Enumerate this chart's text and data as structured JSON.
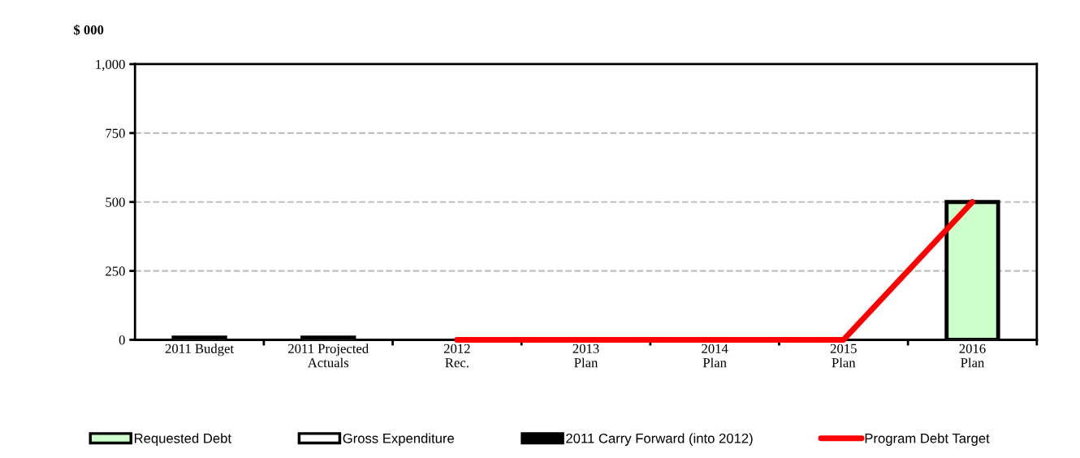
{
  "chart_data": {
    "type": "bar",
    "ylabel": "$ 000",
    "categories": [
      "2011 Budget",
      "2011 Projected\nActuals",
      "2012\nRec.",
      "2013\nPlan",
      "2014\nPlan",
      "2015\nPlan",
      "2016\nPlan"
    ],
    "series": [
      {
        "name": "Requested Debt",
        "color": "#ccffcc",
        "values": [
          8,
          null,
          null,
          null,
          null,
          null,
          500
        ]
      },
      {
        "name": "Gross Expenditure",
        "color": "#ffffff",
        "values": [
          null,
          8,
          null,
          null,
          null,
          null,
          null
        ]
      },
      {
        "name": "2011 Carry Forward (into 2012)",
        "color": "#000000",
        "values": [
          null,
          null,
          null,
          null,
          null,
          null,
          null
        ]
      },
      {
        "name": "Program Debt Target",
        "type": "line",
        "color": "#ff0000",
        "values": [
          null,
          null,
          0,
          0,
          0,
          0,
          500
        ]
      }
    ],
    "ylim": [
      0,
      1000
    ],
    "yticks": [
      0,
      {
        "value": 250,
        "label": "250"
      },
      {
        "value": 500,
        "label": "500"
      },
      {
        "value": 750,
        "label": "750"
      },
      {
        "value": 1000,
        "label": "1,000"
      }
    ],
    "grid": "y",
    "legend": "bottom"
  }
}
